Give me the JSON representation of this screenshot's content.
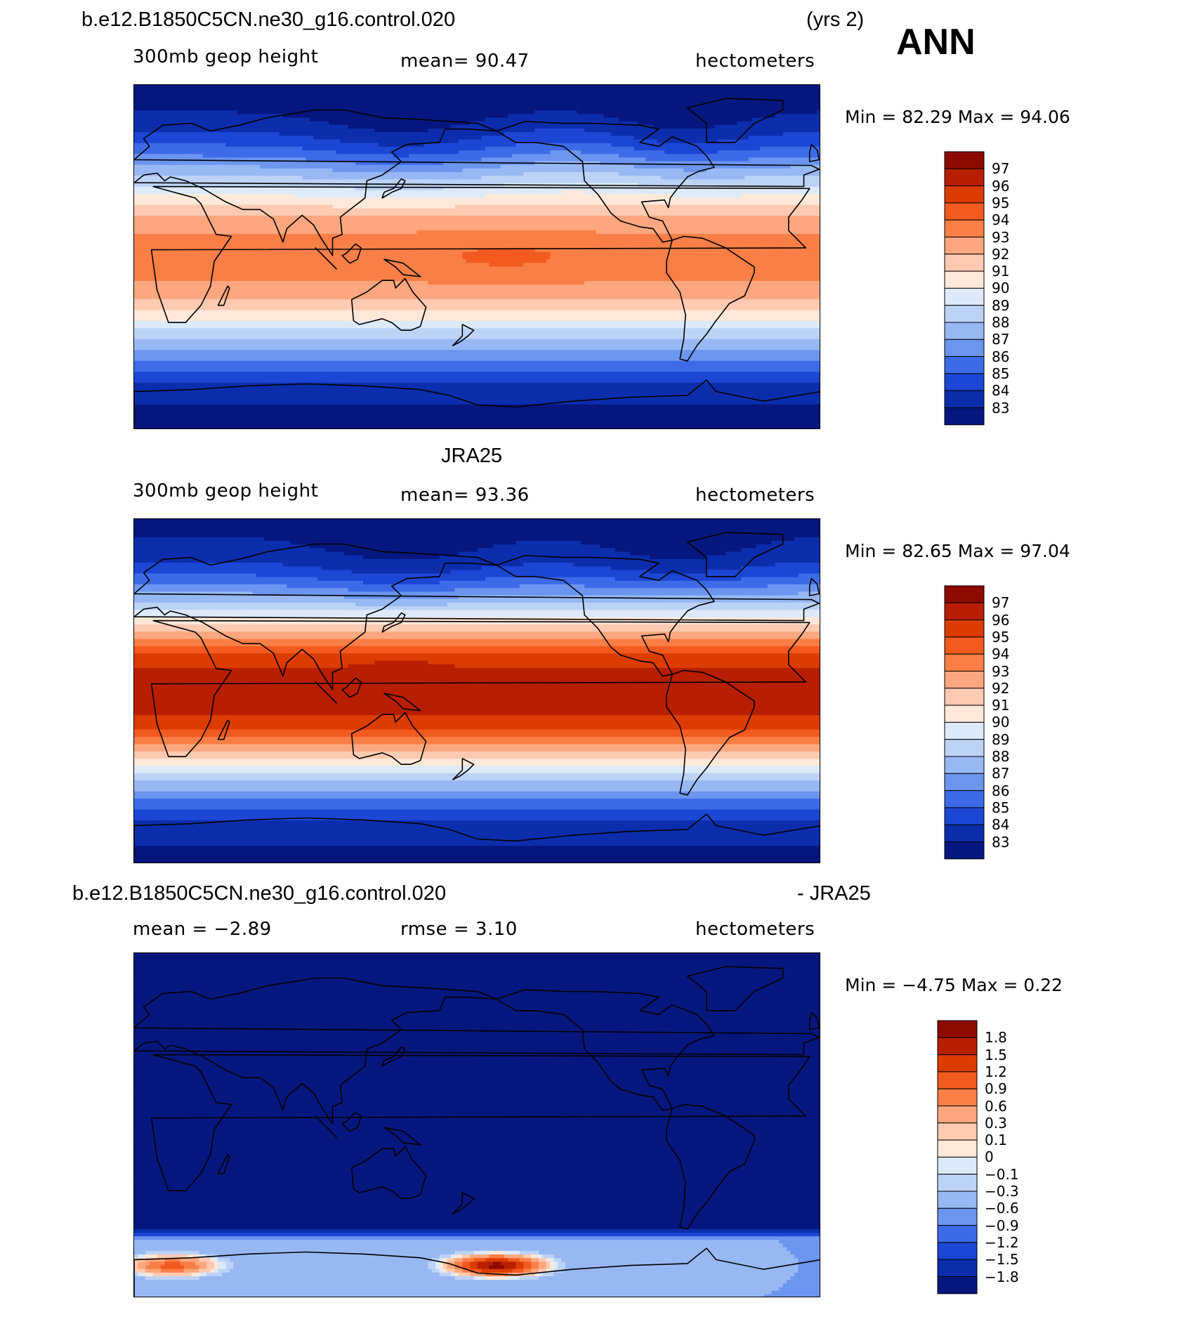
{
  "season": "ANN",
  "panels": [
    {
      "id": "model",
      "title_left": "b.e12.B1850C5CN.ne30_g16.control.020",
      "title_right": "(yrs 2)",
      "sub_left": "300mb  geop  height",
      "sub_mid": "mean=   90.47",
      "sub_right": "hectometers",
      "minmax": "Min  =    82.29  Max  =    94.06",
      "field": "model",
      "scale": "abs",
      "colorbar": [
        "97",
        "96",
        "95",
        "94",
        "93",
        "92",
        "91",
        "90",
        "89",
        "88",
        "87",
        "86",
        "85",
        "84",
        "83"
      ]
    },
    {
      "id": "obs",
      "title_left": "",
      "title_center": "JRA25",
      "sub_left": "300mb  geop  height",
      "sub_mid": "mean=   93.36",
      "sub_right": "hectometers",
      "minmax": "Min  =    82.65  Max  =    97.04",
      "field": "obs",
      "scale": "abs",
      "colorbar": [
        "97",
        "96",
        "95",
        "94",
        "93",
        "92",
        "91",
        "90",
        "89",
        "88",
        "87",
        "86",
        "85",
        "84",
        "83"
      ]
    },
    {
      "id": "diff",
      "title_left": "b.e12.B1850C5CN.ne30_g16.control.020",
      "title_right": "- JRA25",
      "sub_left": "mean  =    −2.89",
      "sub_mid": "rmse  =     3.10",
      "sub_right": "hectometers",
      "minmax": "Min  =    −4.75  Max  =     0.22",
      "field": "diff",
      "scale": "diff",
      "colorbar": [
        "1.8",
        "1.5",
        "1.2",
        "0.9",
        "0.6",
        "0.3",
        "0.1",
        "0",
        "−0.1",
        "−0.3",
        "−0.6",
        "−0.9",
        "−1.2",
        "−1.5",
        "−1.8"
      ]
    }
  ],
  "palette": [
    "#8c0a00",
    "#b81e00",
    "#dc3c00",
    "#f25a20",
    "#f97f47",
    "#fca77f",
    "#fecab1",
    "#fde8d9",
    "#dceaf9",
    "#bcd3f6",
    "#98b8f4",
    "#6c95f0",
    "#3d6be8",
    "#1c46d4",
    "#0c2eac",
    "#06167f"
  ],
  "coastline_color": "#000000"
}
